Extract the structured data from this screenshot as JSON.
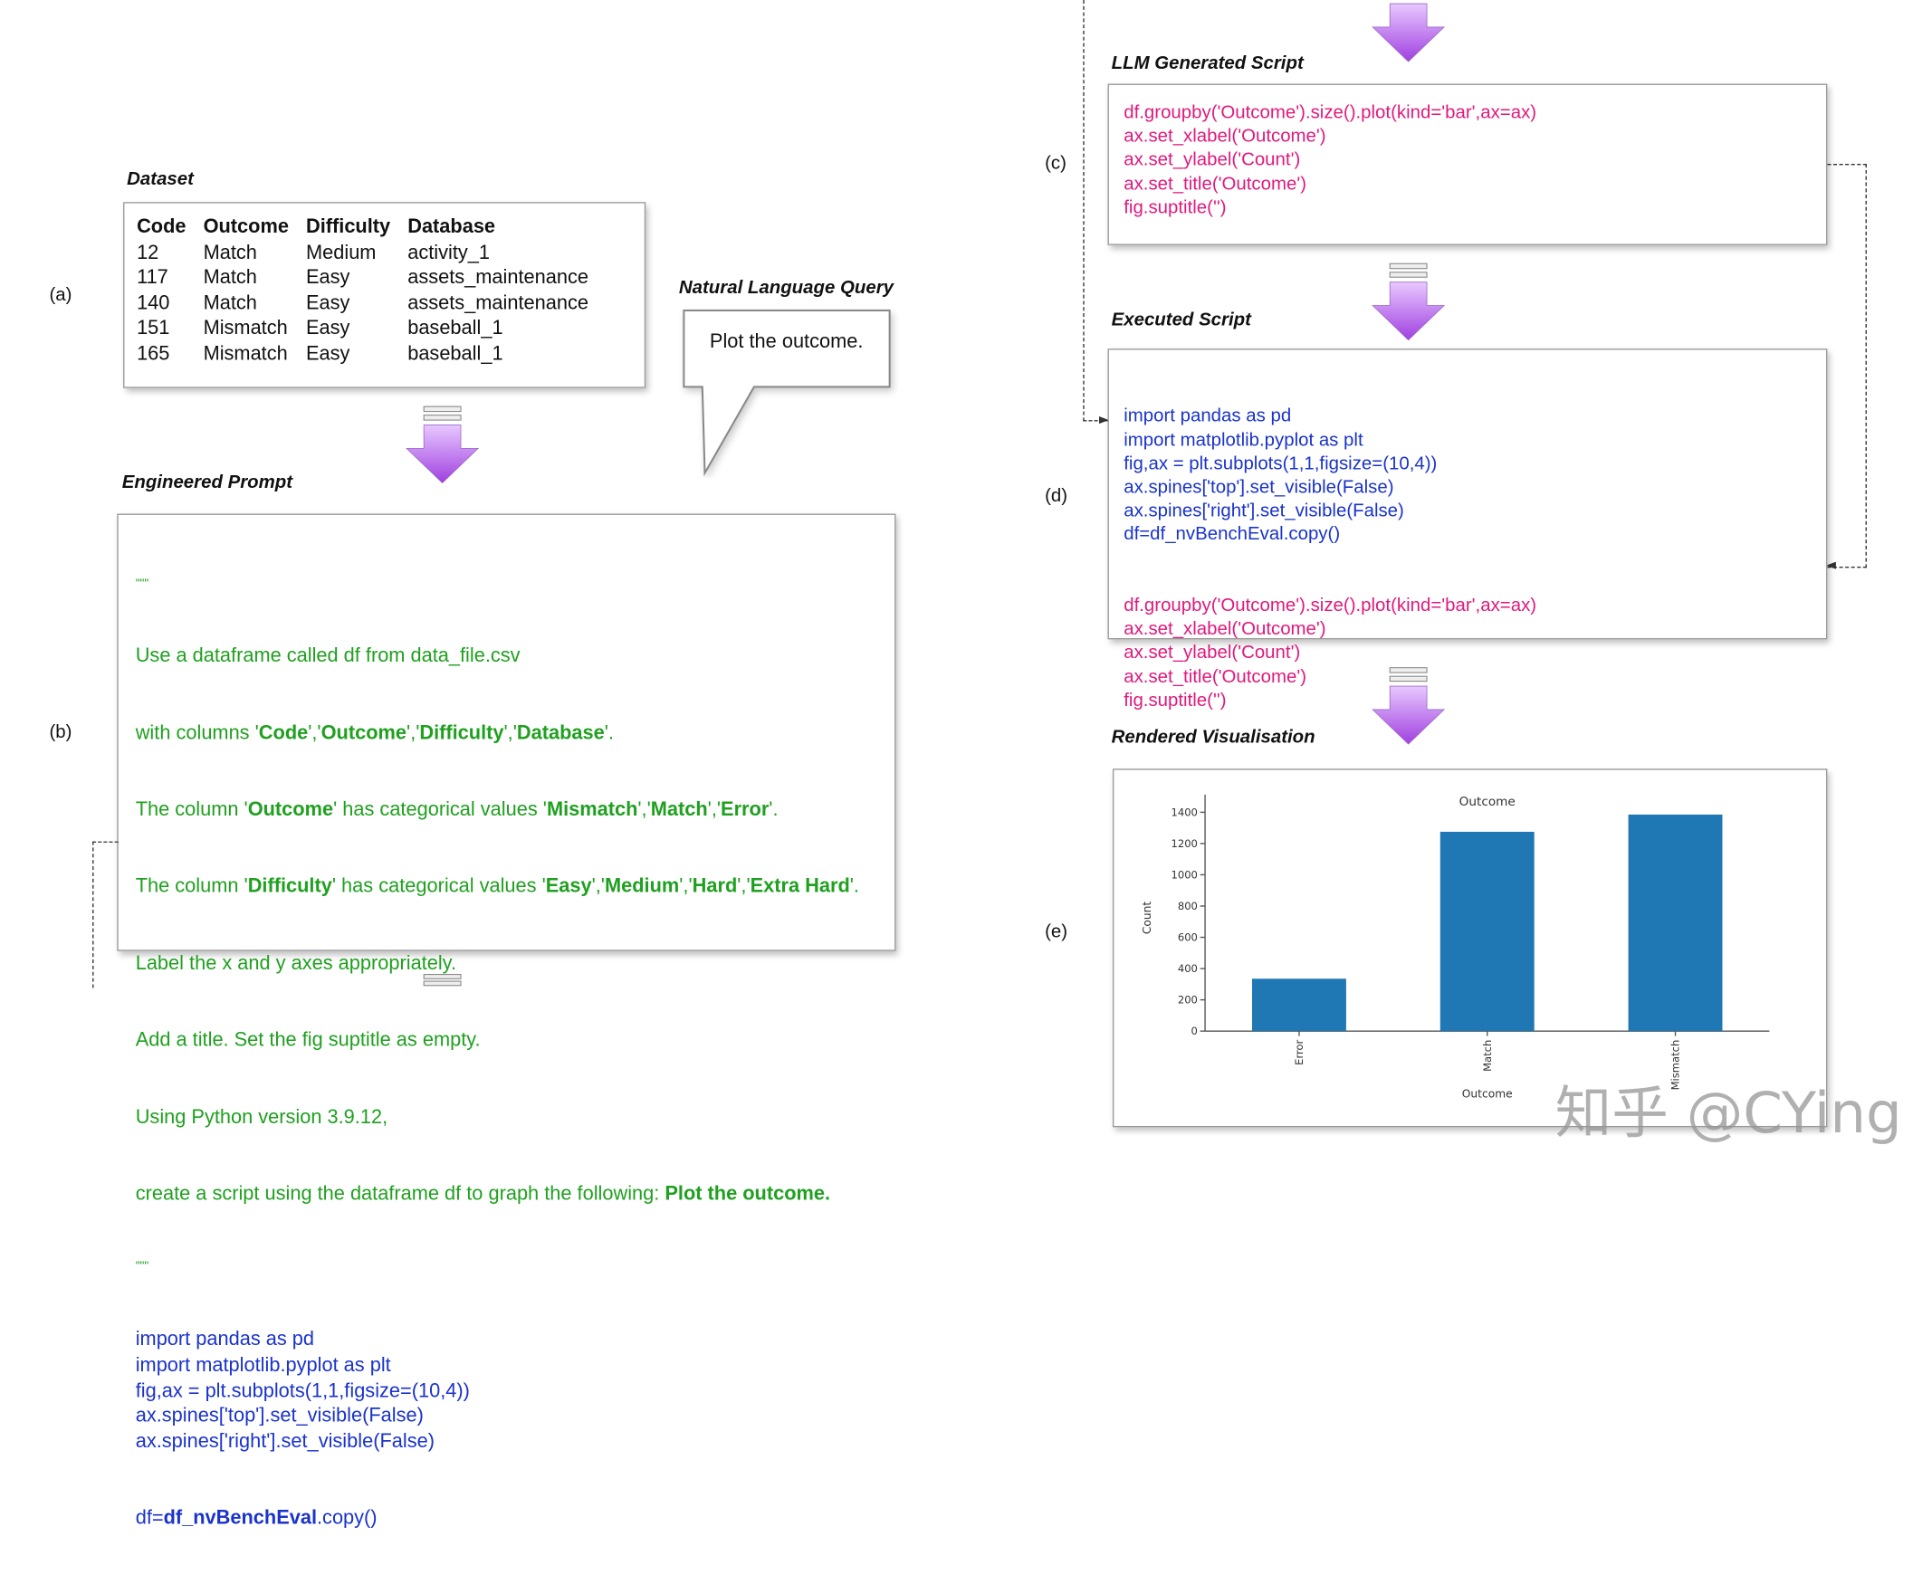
{
  "labels": {
    "a": "(a)",
    "b": "(b)",
    "c": "(c)",
    "d": "(d)",
    "e": "(e)"
  },
  "dataset": {
    "title": "Dataset",
    "columns": [
      "Code",
      "Outcome",
      "Difficulty",
      "Database"
    ],
    "rows": [
      [
        "12",
        "Match",
        "Medium",
        "activity_1"
      ],
      [
        "117",
        "Match",
        "Easy",
        "assets_maintenance"
      ],
      [
        "140",
        "Match",
        "Easy",
        "assets_maintenance"
      ],
      [
        "151",
        "Mismatch",
        "Easy",
        "baseball_1"
      ],
      [
        "165",
        "Mismatch",
        "Easy",
        "baseball_1"
      ]
    ]
  },
  "nl_query": {
    "title": "Natural Language Query",
    "text": "Plot the outcome."
  },
  "engineered_prompt": {
    "title": "Engineered Prompt",
    "quote": "\"\"\"",
    "l1": "Use a dataframe called df from data_file.csv",
    "l2": [
      "with columns '",
      "Code",
      "','",
      "Outcome",
      "','",
      "Difficulty",
      "','",
      "Database",
      "'."
    ],
    "l3": [
      "The column '",
      "Outcome",
      "' has categorical values '",
      "Mismatch",
      "','",
      "Match",
      "','",
      "Error",
      "'."
    ],
    "l4": [
      "The column '",
      "Difficulty",
      "' has categorical values '",
      "Easy",
      "','",
      "Medium",
      "','",
      "Hard",
      "','",
      "Extra Hard",
      "'."
    ],
    "l5": "Label the x and y axes appropriately.",
    "l6": "Add a title. Set the fig suptitle as empty.",
    "l7": "Using Python version 3.9.12,",
    "l8": [
      "create a script using the dataframe df to graph the following: ",
      "Plot the outcome."
    ],
    "code": [
      "import pandas as pd",
      "import matplotlib.pyplot as plt",
      "fig,ax = plt.subplots(1,1,figsize=(10,4))",
      "ax.spines['top'].set_visible(False)",
      "ax.spines['right'].set_visible(False)"
    ],
    "code_last": [
      "df=",
      "df_nvBenchEval",
      ".copy()"
    ]
  },
  "llm_script": {
    "title": "LLM Generated Script",
    "lines": [
      "df.groupby('Outcome').size().plot(kind='bar',ax=ax)",
      "ax.set_xlabel('Outcome')",
      "ax.set_ylabel('Count')",
      "ax.set_title('Outcome')",
      "fig.suptitle('')"
    ]
  },
  "executed_script": {
    "title": "Executed Script",
    "blue_lines": [
      "import pandas as pd",
      "import matplotlib.pyplot as plt",
      "fig,ax = plt.subplots(1,1,figsize=(10,4))",
      "ax.spines['top'].set_visible(False)",
      "ax.spines['right'].set_visible(False)",
      "df=df_nvBenchEval.copy()"
    ],
    "pink_lines": [
      "df.groupby('Outcome').size().plot(kind='bar',ax=ax)",
      "ax.set_xlabel('Outcome')",
      "ax.set_ylabel('Count')",
      "ax.set_title('Outcome')",
      "fig.suptitle('')"
    ]
  },
  "rendered": {
    "title": "Rendered Visualisation"
  },
  "chart_data": {
    "type": "bar",
    "title": "Outcome",
    "xlabel": "Outcome",
    "ylabel": "Count",
    "categories": [
      "Error",
      "Match",
      "Mismatch"
    ],
    "values": [
      335,
      1275,
      1385
    ],
    "ylim": [
      0,
      1450
    ],
    "yticks": [
      0,
      200,
      400,
      600,
      800,
      1000,
      1200,
      1400
    ],
    "bar_color": "#1f77b4",
    "grid": false
  },
  "colors": {
    "code_blue": "#1a33cc",
    "code_pink": "#e0197d",
    "prompt_green": "#1fa01f",
    "arrow_purple": "#a040e0"
  },
  "watermark": "知乎 @CYing"
}
